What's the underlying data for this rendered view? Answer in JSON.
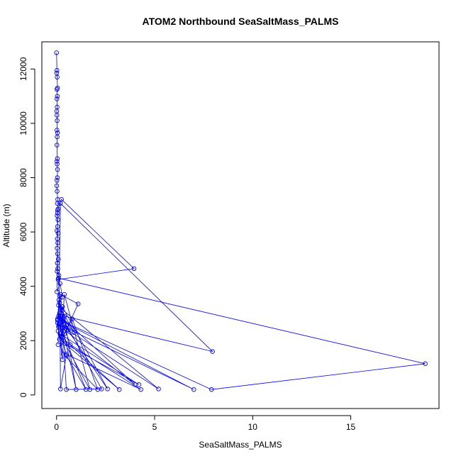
{
  "chart_data": {
    "type": "line",
    "title": "ATOM2 Northbound SeaSaltMass_PALMS",
    "xlabel": "SeaSaltMass_PALMS",
    "ylabel": "Altitude (m)",
    "xlim": [
      -0.75,
      19.5
    ],
    "ylim": [
      -500,
      13000
    ],
    "x_ticks": [
      0,
      5,
      10,
      15
    ],
    "y_ticks": [
      0,
      2000,
      4000,
      6000,
      8000,
      10000,
      12000
    ],
    "series_color": "#0000ff",
    "marker": "open-circle",
    "grid": false,
    "series": [
      {
        "x": [
          0.0,
          0.02,
          0.01,
          0.03,
          0.05,
          0.02,
          0.04,
          0.02,
          0.03,
          0.01,
          0.02,
          0.03,
          0.02,
          0.05,
          0.03,
          0.02,
          0.04,
          0.02,
          0.03,
          0.05,
          0.04,
          0.02,
          0.01,
          0.03,
          0.06,
          0.04,
          0.08,
          0.05,
          0.03,
          0.07,
          0.05,
          0.02,
          0.08,
          0.04,
          0.06,
          0.03,
          0.05,
          0.09,
          0.04,
          0.06,
          0.03,
          0.12,
          0.08,
          3.95,
          0.25,
          0.05,
          0.02,
          0.18,
          0.3,
          0.1,
          0.4,
          7.95,
          0.2,
          0.12,
          0.05,
          0.15,
          0.35,
          0.3,
          4.0,
          0.2,
          0.1,
          18.8,
          7.9,
          0.05,
          0.3,
          0.12,
          0.6,
          0.25,
          2.3,
          0.5,
          0.2,
          1.1,
          0.4,
          0.05,
          0.15,
          3.2,
          0.3,
          0.8,
          2.1,
          0.35,
          0.08,
          1.7,
          0.4,
          0.25,
          0.5,
          4.3,
          0.7,
          0.15,
          1.0,
          0.3,
          2.6,
          0.1,
          0.45,
          5.2,
          0.2,
          0.9,
          0.35,
          0.3,
          7.0,
          0.12,
          0.4,
          4.2,
          0.18,
          0.2,
          0.5,
          1.5,
          0.05,
          0.3,
          0.15,
          0.1,
          0.08
        ],
        "y": [
          12600,
          11950,
          11850,
          11700,
          11300,
          11250,
          11000,
          10900,
          10600,
          10450,
          10300,
          10100,
          9750,
          9650,
          9500,
          9200,
          8700,
          8600,
          8500,
          8300,
          8000,
          7900,
          7700,
          7500,
          7200,
          7050,
          6850,
          6700,
          6600,
          6450,
          6200,
          6050,
          5950,
          5750,
          5600,
          5400,
          5200,
          5000,
          4850,
          4650,
          4550,
          4400,
          4250,
          4650,
          7200,
          6800,
          3800,
          4100,
          3600,
          3300,
          2900,
          1600,
          7050,
          3500,
          2750,
          3400,
          2600,
          2450,
          380,
          2900,
          4300,
          1150,
          200,
          2800,
          3250,
          2550,
          2400,
          2900,
          220,
          200,
          3700,
          3350,
          2250,
          2650,
          2050,
          200,
          2100,
          2800,
          200,
          1500,
          2350,
          200,
          3700,
          2150,
          1500,
          200,
          1850,
          3000,
          200,
          3250,
          220,
          2900,
          2450,
          220,
          3200,
          2300,
          2800,
          2700,
          200,
          2600,
          1900,
          380,
          2250,
          220,
          1450,
          200,
          2750,
          1300,
          3650,
          2500,
          1850
        ]
      }
    ]
  }
}
